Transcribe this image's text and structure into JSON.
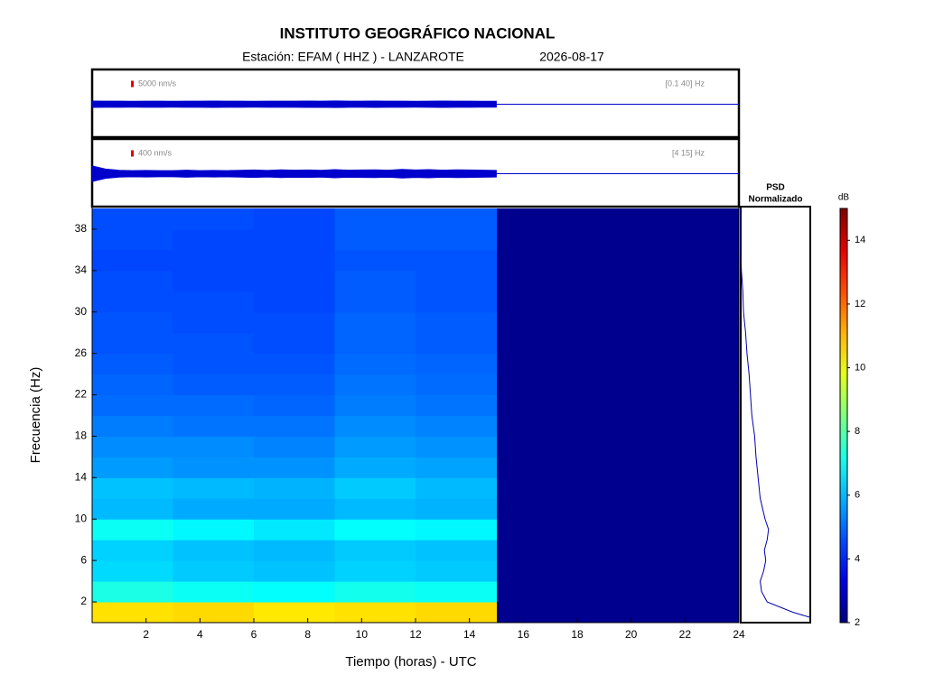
{
  "header": {
    "title": "INSTITUTO GEOGRÁFICO NACIONAL",
    "station": "Estación:  EFAM ( HHZ ) - LANZAROTE",
    "date": "2026-08-17"
  },
  "chart_data": [
    {
      "type": "waveform",
      "scale": {
        "value": 5000,
        "label": "5000 nm/s"
      },
      "band": "[0.1 40] Hz",
      "color": "#0000cc",
      "xlim": [
        0,
        24
      ],
      "x": [
        0,
        0.5,
        1,
        1.5,
        2,
        2.5,
        3,
        3.5,
        4,
        4.5,
        5,
        5.5,
        6,
        6.5,
        7,
        7.5,
        8,
        8.5,
        9,
        9.5,
        10,
        10.5,
        11,
        11.5,
        12,
        12.5,
        13,
        13.5,
        14,
        14.5,
        15
      ],
      "values": [
        2600,
        2500,
        2500,
        2400,
        2500,
        2500,
        2400,
        2500,
        2500,
        2600,
        2500,
        2500,
        2400,
        2500,
        2500,
        2500,
        2600,
        2500,
        2700,
        2500,
        2500,
        2600,
        2500,
        2500,
        2400,
        2500,
        2600,
        2500,
        2500,
        2400,
        2400
      ]
    },
    {
      "type": "waveform",
      "scale": {
        "value": 400,
        "label": "400 nm/s"
      },
      "band": "[4 15] Hz",
      "color": "#0000cc",
      "xlim": [
        0,
        24
      ],
      "x": [
        0,
        0.5,
        1,
        1.5,
        2,
        2.5,
        3,
        3.5,
        4,
        4.5,
        5,
        5.5,
        6,
        6.5,
        7,
        7.5,
        8,
        8.5,
        9,
        9.5,
        10,
        10.5,
        11,
        11.5,
        12,
        12.5,
        13,
        13.5,
        14,
        14.5,
        15
      ],
      "values": [
        500,
        300,
        220,
        200,
        210,
        200,
        200,
        230,
        200,
        210,
        200,
        220,
        240,
        210,
        250,
        230,
        240,
        220,
        260,
        230,
        240,
        250,
        230,
        280,
        240,
        260,
        230,
        250,
        240,
        230,
        210
      ]
    },
    {
      "type": "heatmap",
      "xlabel": "Tiempo (horas) - UTC",
      "ylabel": "Frecuencia  (Hz)",
      "xlim": [
        0,
        24
      ],
      "ylim": [
        0,
        40
      ],
      "xticks": [
        2,
        4,
        6,
        8,
        10,
        12,
        14,
        16,
        18,
        20,
        22,
        24
      ],
      "yticks": [
        2,
        6,
        10,
        14,
        18,
        22,
        26,
        30,
        34,
        38
      ],
      "x_edges": [
        0,
        3,
        6,
        9,
        12,
        15,
        18,
        21,
        24
      ],
      "y_edges": [
        0,
        2,
        4,
        6,
        8,
        10,
        12,
        14,
        16,
        18,
        20,
        22,
        24,
        26,
        28,
        30,
        32,
        34,
        36,
        38,
        40
      ],
      "z": [
        [
          10.5,
          10.6,
          10.4,
          10.5,
          10.6,
          null,
          null,
          null
        ],
        [
          7.2,
          7.0,
          6.9,
          7.1,
          7.0,
          null,
          null,
          null
        ],
        [
          6.4,
          6.2,
          6.1,
          6.3,
          6.2,
          null,
          null,
          null
        ],
        [
          6.3,
          6.1,
          6.0,
          6.2,
          6.1,
          null,
          null,
          null
        ],
        [
          7.0,
          6.8,
          6.6,
          6.9,
          6.8,
          null,
          null,
          null
        ],
        [
          6.0,
          5.8,
          5.8,
          6.0,
          5.9,
          null,
          null,
          null
        ],
        [
          6.1,
          6.0,
          5.9,
          6.2,
          6.0,
          null,
          null,
          null
        ],
        [
          5.6,
          5.5,
          5.5,
          5.8,
          5.7,
          null,
          null,
          null
        ],
        [
          5.4,
          5.4,
          5.3,
          5.6,
          5.5,
          null,
          null,
          null
        ],
        [
          5.2,
          5.1,
          5.1,
          5.4,
          5.3,
          null,
          null,
          null
        ],
        [
          5.0,
          5.0,
          4.9,
          5.2,
          5.1,
          null,
          null,
          null
        ],
        [
          4.9,
          4.8,
          4.8,
          5.1,
          5.0,
          null,
          null,
          null
        ],
        [
          4.8,
          4.7,
          4.7,
          5.0,
          4.9,
          null,
          null,
          null
        ],
        [
          4.7,
          4.7,
          4.6,
          4.9,
          4.8,
          null,
          null,
          null
        ],
        [
          4.7,
          4.6,
          4.6,
          4.9,
          4.8,
          null,
          null,
          null
        ],
        [
          4.6,
          4.6,
          4.5,
          4.8,
          4.7,
          null,
          null,
          null
        ],
        [
          4.6,
          4.5,
          4.5,
          4.8,
          4.7,
          null,
          null,
          null
        ],
        [
          4.5,
          4.5,
          4.5,
          4.7,
          4.7,
          null,
          null,
          null
        ],
        [
          4.6,
          4.5,
          4.5,
          4.8,
          4.8,
          null,
          null,
          null
        ],
        [
          4.6,
          4.6,
          4.5,
          4.8,
          4.8,
          null,
          null,
          null
        ]
      ],
      "colormap": "jet",
      "clim": [
        2,
        15
      ],
      "empty_color": "#00008f",
      "colorbar_label": "dB",
      "colorbar_ticks": [
        2,
        4,
        6,
        8,
        10,
        12,
        14
      ]
    },
    {
      "type": "psd",
      "title": "PSD",
      "subtitle": "Normalizado",
      "color": "#0000aa",
      "xlim": [
        0,
        1
      ],
      "ylim": [
        0,
        40
      ],
      "y": [
        0.5,
        1,
        2,
        3,
        4,
        5,
        6,
        7,
        8,
        9,
        10,
        12,
        14,
        16,
        18,
        20,
        22,
        24,
        26,
        28,
        30,
        32,
        34,
        36,
        38,
        40
      ],
      "values": [
        1.0,
        0.75,
        0.38,
        0.3,
        0.28,
        0.33,
        0.36,
        0.34,
        0.38,
        0.4,
        0.35,
        0.28,
        0.25,
        0.22,
        0.2,
        0.16,
        0.14,
        0.12,
        0.09,
        0.07,
        0.04,
        0.03,
        0.01,
        0,
        0,
        0
      ]
    }
  ]
}
